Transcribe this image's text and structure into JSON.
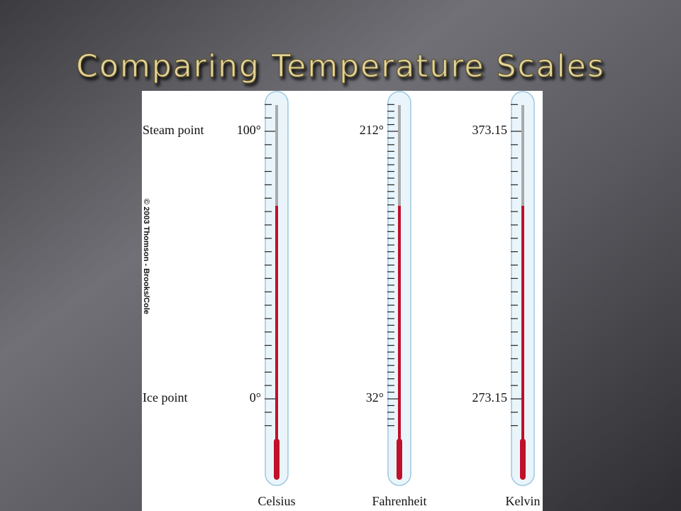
{
  "title": "Comparing Temperature Scales",
  "credit": "© 2003 Thomson - Brooks/Cole",
  "rows": [
    "Steam point",
    "Ice point"
  ],
  "thermometers": [
    {
      "name": "Celsius",
      "steam": "100°",
      "ice": "0°"
    },
    {
      "name": "Fahrenheit",
      "steam": "212°",
      "ice": "32°"
    },
    {
      "name": "Kelvin",
      "steam": "373.15",
      "ice": "273.15"
    }
  ]
}
